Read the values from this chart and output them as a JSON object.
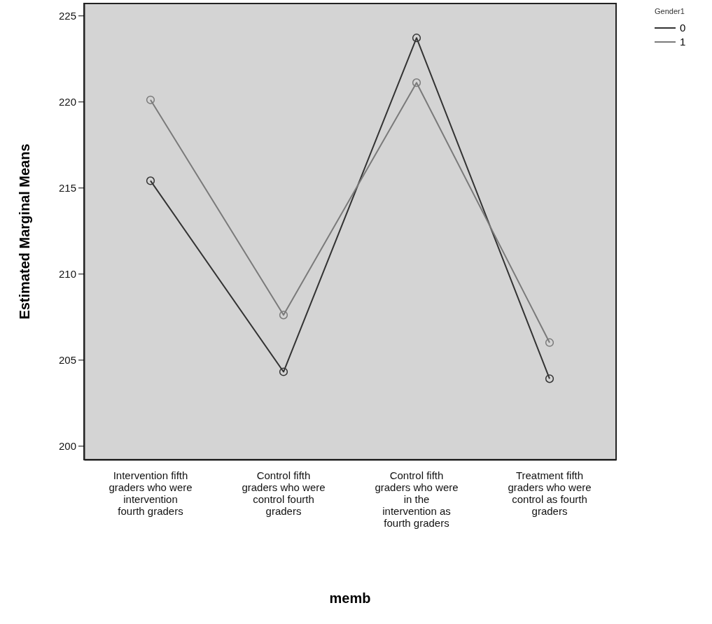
{
  "chart_data": {
    "type": "line",
    "xlabel": "memb",
    "ylabel": "Estimated Marginal Means",
    "legend_title": "Gender1",
    "categories": [
      "Intervention fifth graders who were intervention fourth graders",
      "Control fifth graders who were control fourth graders",
      "Control fifth graders who were in the intervention as fourth graders",
      "Treatment fifth graders who were control as fourth graders"
    ],
    "series": [
      {
        "name": "0",
        "color": "#333333",
        "values": [
          215.4,
          204.3,
          223.7,
          203.9
        ]
      },
      {
        "name": "1",
        "color": "#7a7a7a",
        "values": [
          220.1,
          207.6,
          221.1,
          206.0
        ]
      }
    ],
    "ylim": [
      199.2,
      225.7
    ],
    "yticks": [
      200,
      205,
      210,
      215,
      220,
      225
    ],
    "legend": "top right",
    "marker": "circle",
    "line_style": "solid"
  }
}
